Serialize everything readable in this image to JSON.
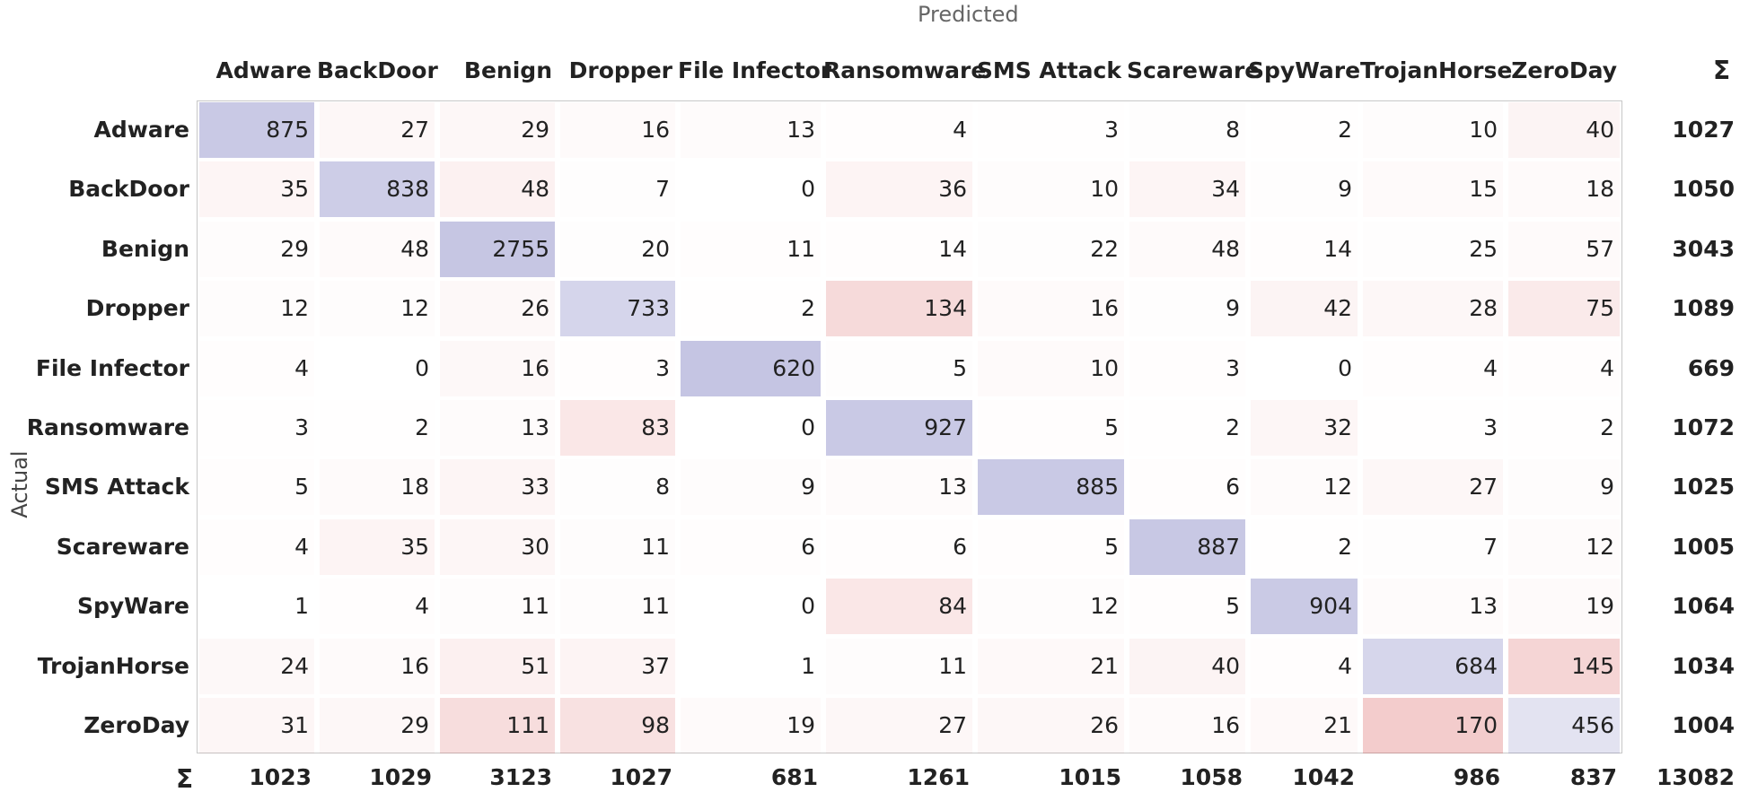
{
  "chart_data": {
    "type": "heatmap",
    "xlabel": "Predicted",
    "ylabel": "Actual",
    "sum_symbol": "Σ",
    "labels": [
      "Adware",
      "BackDoor",
      "Benign",
      "Dropper",
      "File Infector",
      "Ransomware",
      "SMS Attack",
      "Scareware",
      "SpyWare",
      "TrojanHorse",
      "ZeroDay"
    ],
    "matrix": [
      [
        875,
        27,
        29,
        16,
        13,
        4,
        3,
        8,
        2,
        10,
        40
      ],
      [
        35,
        838,
        48,
        7,
        0,
        36,
        10,
        34,
        9,
        15,
        18
      ],
      [
        29,
        48,
        2755,
        20,
        11,
        14,
        22,
        48,
        14,
        25,
        57
      ],
      [
        12,
        12,
        26,
        733,
        2,
        134,
        16,
        9,
        42,
        28,
        75
      ],
      [
        4,
        0,
        16,
        3,
        620,
        5,
        10,
        3,
        0,
        4,
        4
      ],
      [
        3,
        2,
        13,
        83,
        0,
        927,
        5,
        2,
        32,
        3,
        2
      ],
      [
        5,
        18,
        33,
        8,
        9,
        13,
        885,
        6,
        12,
        27,
        9
      ],
      [
        4,
        35,
        30,
        11,
        6,
        6,
        5,
        887,
        2,
        7,
        12
      ],
      [
        1,
        4,
        11,
        11,
        0,
        84,
        12,
        5,
        904,
        13,
        19
      ],
      [
        24,
        16,
        51,
        37,
        1,
        11,
        21,
        40,
        4,
        684,
        145
      ],
      [
        31,
        29,
        111,
        98,
        19,
        27,
        26,
        16,
        21,
        170,
        456
      ]
    ],
    "row_sums": [
      1027,
      1050,
      3043,
      1089,
      669,
      1072,
      1025,
      1005,
      1064,
      1034,
      1004
    ],
    "col_sums": [
      1023,
      1029,
      3123,
      1027,
      681,
      1261,
      1015,
      1058,
      1042,
      986,
      837
    ],
    "total": 13082,
    "colors": {
      "diagonal": "#3c3ca0",
      "off_diagonal": "#d23c3c",
      "frame": "#c7c7c7"
    }
  }
}
